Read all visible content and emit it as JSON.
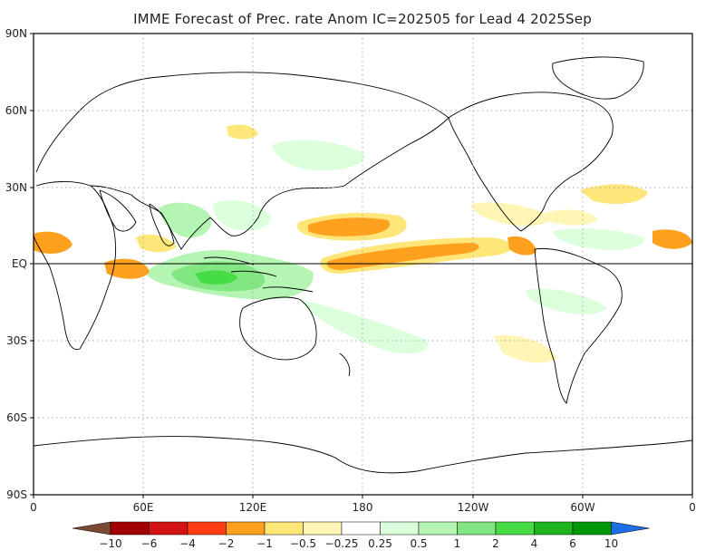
{
  "title": "IMME Forecast of Prec. rate Anom IC=202505 for Lead 4 2025Sep",
  "axes": {
    "lat_labels": [
      "90N",
      "60N",
      "30N",
      "EQ",
      "30S",
      "60S",
      "90S"
    ],
    "lon_labels": [
      "0",
      "60E",
      "120E",
      "180",
      "120W",
      "60W",
      "0"
    ]
  },
  "colorbar": {
    "labels": [
      "-10",
      "-6",
      "-4",
      "-2",
      "-1",
      "-0.5",
      "-0.25",
      "0.25",
      "0.5",
      "1",
      "2",
      "4",
      "6",
      "10"
    ],
    "colors": [
      "#7a4a35",
      "#a00000",
      "#d41414",
      "#ff3c14",
      "#ffa01e",
      "#ffe678",
      "#fff5b4",
      "#ffffff",
      "#dcffdc",
      "#b4f5b4",
      "#82e682",
      "#46dc46",
      "#1eb41e",
      "#00960a",
      "#1e6ee6"
    ]
  },
  "anomaly_colors": {
    "dry_strong": "#ffa01e",
    "dry_moderate": "#ffe678",
    "dry_weak": "#fff5b4",
    "wet_weak": "#dcffdc",
    "wet_moderate": "#b4f5b4",
    "wet_strong": "#82e682",
    "wet_stronger": "#46dc46"
  }
}
